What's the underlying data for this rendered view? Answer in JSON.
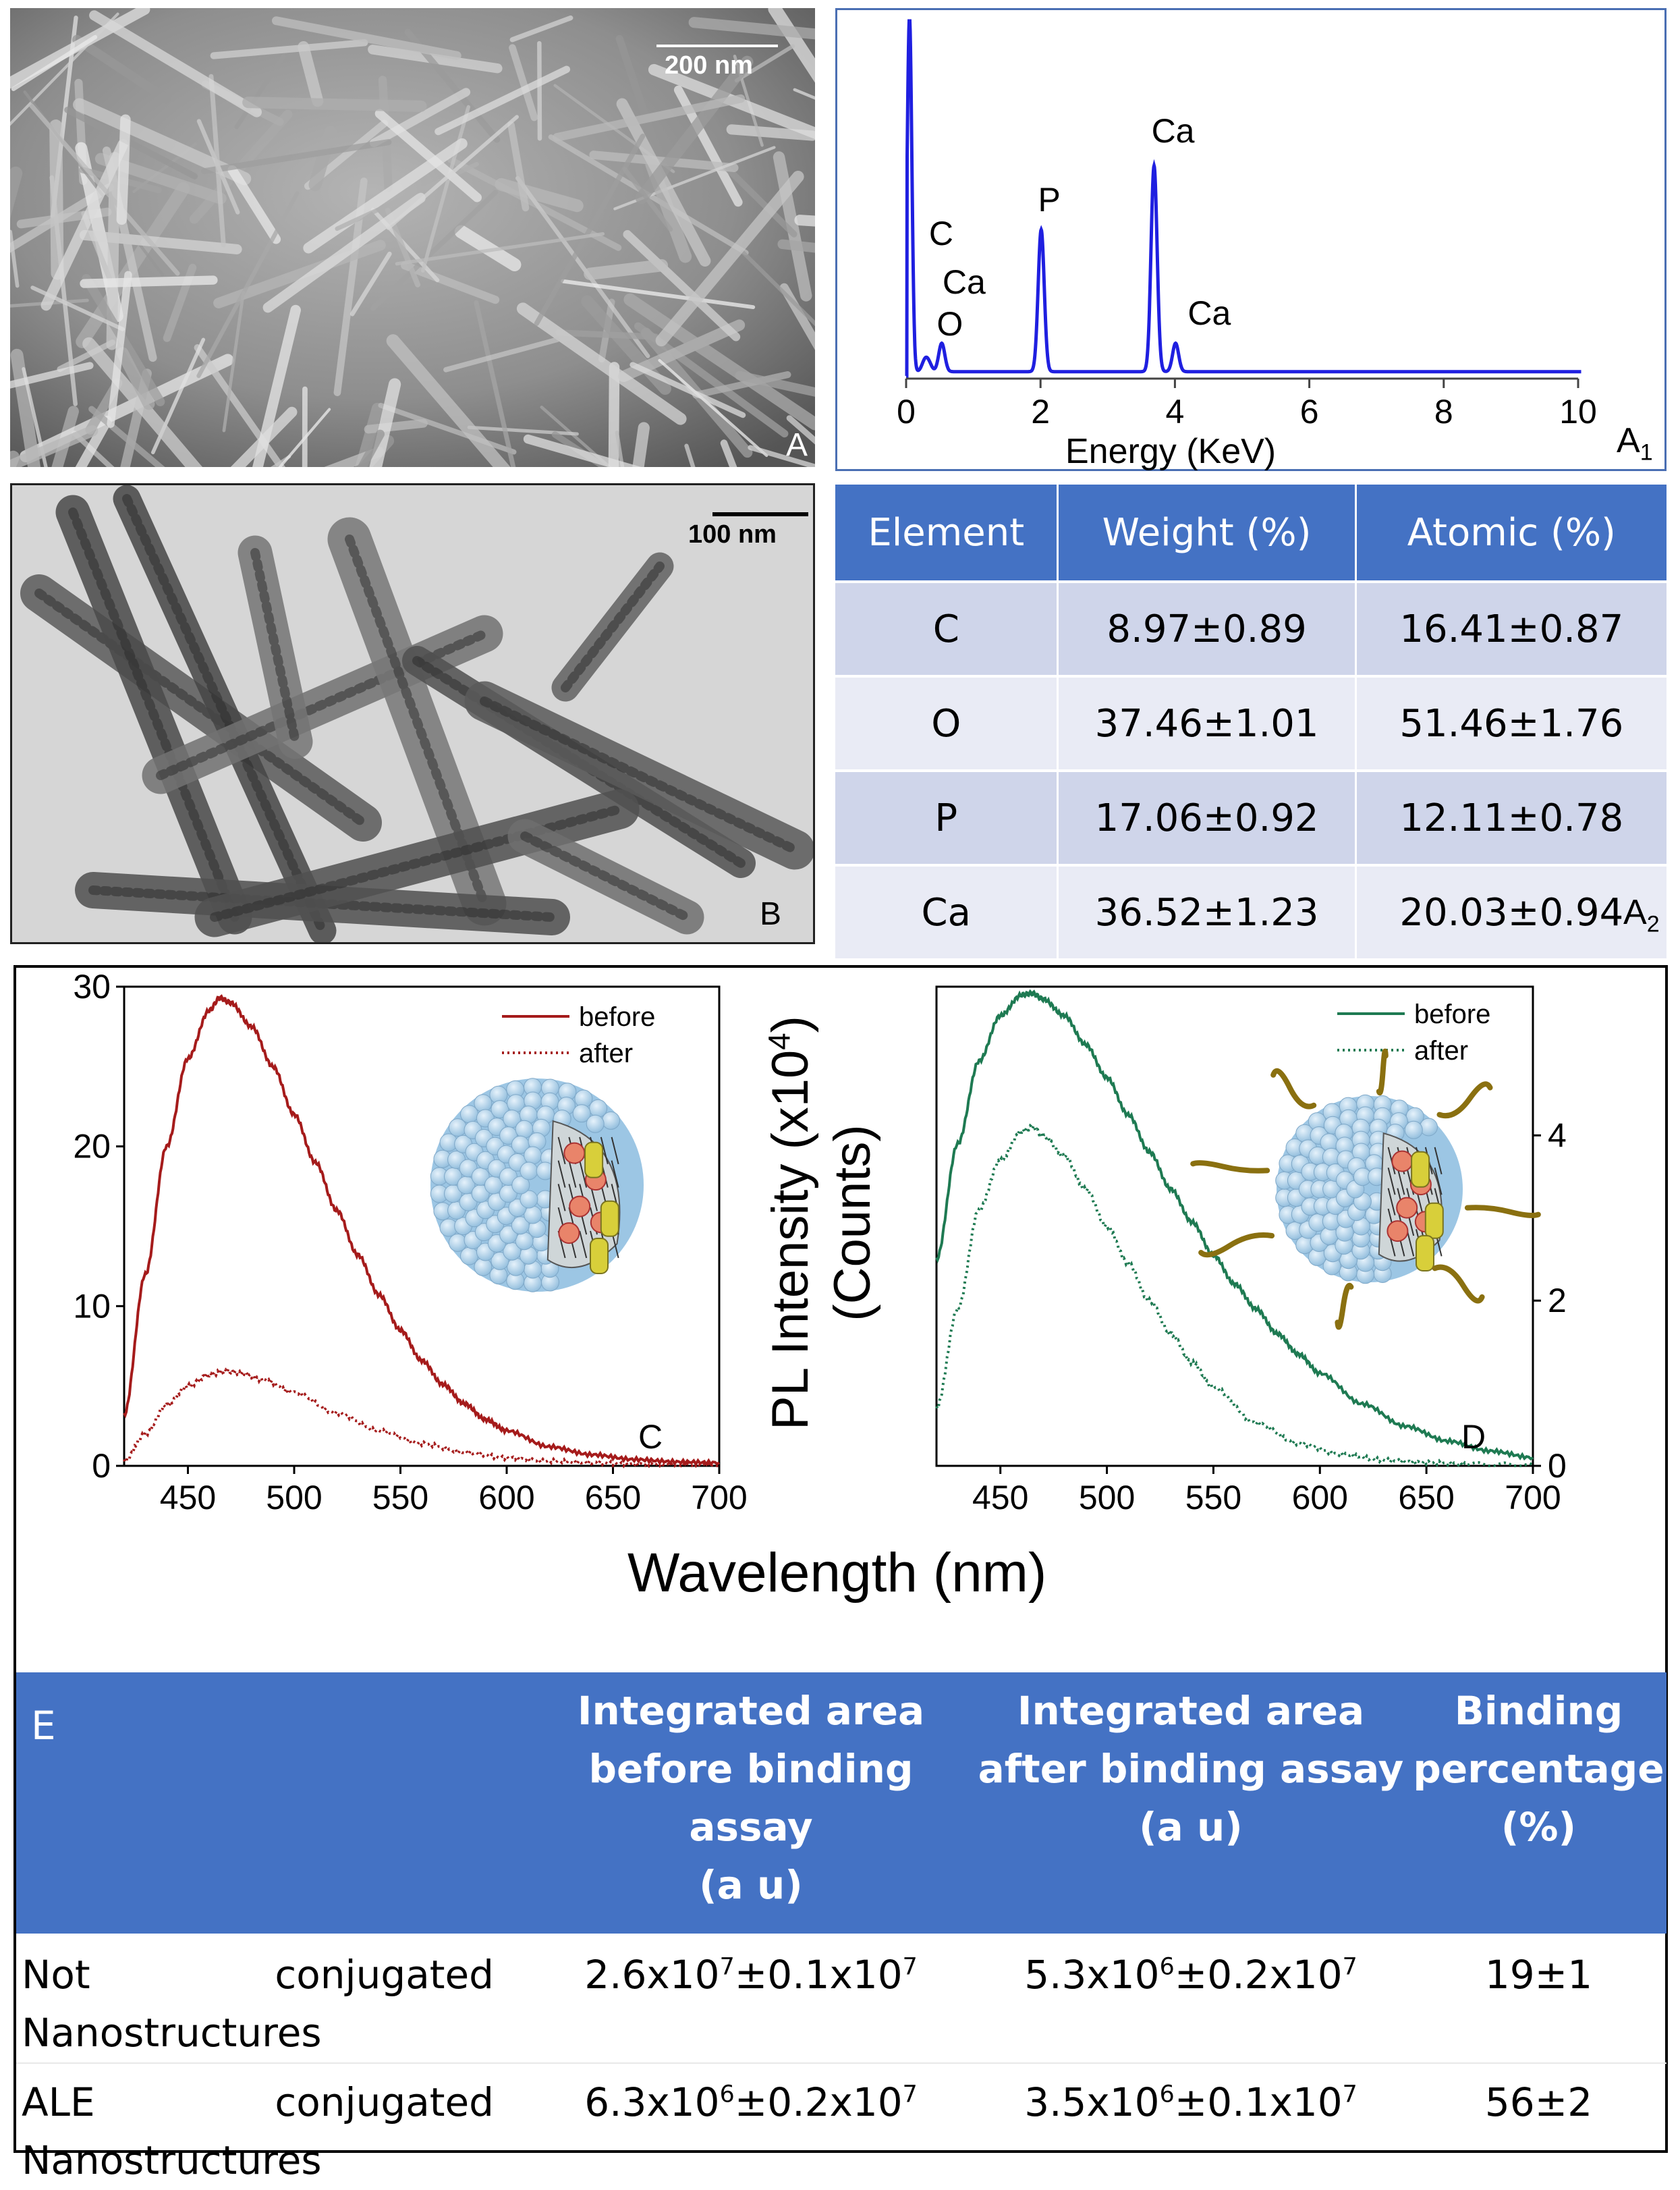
{
  "panels": {
    "sem": {
      "label": "A",
      "scale_bar": "200 nm"
    },
    "tem": {
      "label": "B",
      "scale_bar": "100 nm"
    },
    "eds": {
      "label_main": "A",
      "label_sub": "1",
      "xlabel": "Energy (KeV)",
      "xticks": [
        "0",
        "2",
        "4",
        "6",
        "8",
        "10"
      ]
    },
    "comp": {
      "label_main": "A",
      "label_sub": "2"
    },
    "pl_c": {
      "label": "C"
    },
    "pl_d": {
      "label": "D"
    },
    "pl": {
      "ylabel_line1": "PL Intensity (x10",
      "ylabel_sup": "4",
      "ylabel_close": ")",
      "ylabel_line2": "(Counts)",
      "xlabel": "Wavelength (nm)"
    }
  },
  "colors": {
    "eds_line": "#1f1fe0",
    "c_line": "#a51b1b",
    "d_line": "#1e7a52",
    "header_blue": "#4472c4"
  },
  "composition_table": {
    "headers": [
      "Element",
      "Weight (%)",
      "Atomic (%)"
    ],
    "rows": [
      [
        "C",
        "8.97±0.89",
        "16.41±0.87"
      ],
      [
        "O",
        "37.46±1.01",
        "51.46±1.76"
      ],
      [
        "P",
        "17.06±0.92",
        "12.11±0.78"
      ],
      [
        "Ca",
        "36.52±1.23",
        "20.03±0.94"
      ]
    ]
  },
  "binding_table": {
    "label": "E",
    "headers": {
      "before": [
        "Integrated area",
        "before binding assay",
        "(a u)"
      ],
      "after": [
        "Integrated area",
        "after binding assay",
        "(a u)"
      ],
      "binding": [
        "Binding",
        "percentage",
        "(%)"
      ]
    },
    "rows": [
      {
        "name_a": "Not",
        "name_b": "conjugated",
        "name_c": "Nanostructures",
        "before": {
          "m": "2.6x10",
          "e1": "7",
          "pm": "±0.1x10",
          "e2": "7"
        },
        "after": {
          "m": "5.3x10",
          "e1": "6",
          "pm": "±0.2x10",
          "e2": "7"
        },
        "binding": "19±1"
      },
      {
        "name_a": "ALE",
        "name_b": "conjugated",
        "name_c": "Nanostructures",
        "before": {
          "m": "6.3x10",
          "e1": "6",
          "pm": "±0.2x10",
          "e2": "7"
        },
        "after": {
          "m": "3.5x10",
          "e1": "6",
          "pm": "±0.1x10",
          "e2": "7"
        },
        "binding": "56±2"
      }
    ]
  },
  "chart_data": [
    {
      "type": "line",
      "id": "eds",
      "xlabel": "Energy (KeV)",
      "xlim": [
        0,
        10
      ],
      "ticks_x": [
        0,
        2,
        4,
        6,
        8,
        10
      ],
      "peaks": [
        {
          "x": 0.05,
          "height": 1.0,
          "labels": []
        },
        {
          "x": 0.28,
          "height": 0.03,
          "labels": [
            "C"
          ]
        },
        {
          "x": 0.34,
          "height": 0.02,
          "labels": [
            "Ca"
          ]
        },
        {
          "x": 0.53,
          "height": 0.08,
          "labels": [
            "O"
          ]
        },
        {
          "x": 2.01,
          "height": 0.4,
          "labels": [
            "P"
          ]
        },
        {
          "x": 3.69,
          "height": 0.58,
          "labels": [
            "Ca"
          ]
        },
        {
          "x": 4.01,
          "height": 0.08,
          "labels": [
            "Ca"
          ]
        }
      ]
    },
    {
      "type": "line",
      "id": "pl_c",
      "xlim": [
        420,
        700
      ],
      "ylim": [
        0,
        30
      ],
      "ticks_x": [
        450,
        500,
        550,
        600,
        650,
        700
      ],
      "ticks_y": [
        0,
        10,
        20,
        30
      ],
      "series": [
        {
          "name": "before",
          "style": "solid",
          "x": [
            420,
            430,
            440,
            450,
            460,
            465,
            470,
            480,
            490,
            500,
            510,
            520,
            530,
            540,
            550,
            560,
            570,
            580,
            590,
            600,
            620,
            640,
            660,
            680,
            700
          ],
          "y": [
            3.2,
            12,
            20,
            25.5,
            28.5,
            29.3,
            29,
            27.5,
            25,
            22,
            19,
            16,
            13.2,
            10.7,
            8.5,
            6.6,
            5.1,
            3.9,
            2.9,
            2.2,
            1.2,
            0.7,
            0.4,
            0.25,
            0.2
          ]
        },
        {
          "name": "after",
          "style": "dotted",
          "x": [
            420,
            430,
            440,
            450,
            460,
            468,
            475,
            485,
            500,
            520,
            540,
            560,
            580,
            600,
            620,
            640,
            660,
            680,
            700
          ],
          "y": [
            0.3,
            2,
            3.8,
            5,
            5.7,
            5.95,
            5.8,
            5.4,
            4.6,
            3.3,
            2.2,
            1.4,
            0.85,
            0.5,
            0.3,
            0.2,
            0.1,
            0.05,
            0.03
          ]
        }
      ]
    },
    {
      "type": "line",
      "id": "pl_d",
      "xlim": [
        420,
        700
      ],
      "ylim": [
        0,
        5.8
      ],
      "y_axis_side": "right",
      "ticks_x": [
        450,
        500,
        550,
        600,
        650,
        700
      ],
      "ticks_y": [
        0,
        2,
        4
      ],
      "series": [
        {
          "name": "before",
          "style": "solid",
          "x": [
            420,
            430,
            440,
            450,
            460,
            465,
            470,
            480,
            490,
            500,
            510,
            520,
            530,
            540,
            550,
            560,
            570,
            580,
            590,
            600,
            620,
            640,
            660,
            680,
            700
          ],
          "y": [
            2.5,
            3.9,
            4.9,
            5.45,
            5.7,
            5.72,
            5.65,
            5.45,
            5.1,
            4.7,
            4.25,
            3.8,
            3.35,
            2.95,
            2.55,
            2.2,
            1.9,
            1.6,
            1.35,
            1.12,
            0.75,
            0.48,
            0.3,
            0.18,
            0.1
          ]
        },
        {
          "name": "after",
          "style": "dotted",
          "x": [
            420,
            430,
            440,
            450,
            460,
            465,
            470,
            480,
            490,
            500,
            510,
            520,
            530,
            540,
            550,
            570,
            590,
            610,
            630,
            650,
            670,
            700
          ],
          "y": [
            0.7,
            1.9,
            3.1,
            3.7,
            4.05,
            4.1,
            4.0,
            3.75,
            3.35,
            2.9,
            2.45,
            2.0,
            1.6,
            1.25,
            0.95,
            0.52,
            0.27,
            0.14,
            0.07,
            0.04,
            0.02,
            0.01
          ]
        }
      ]
    }
  ]
}
